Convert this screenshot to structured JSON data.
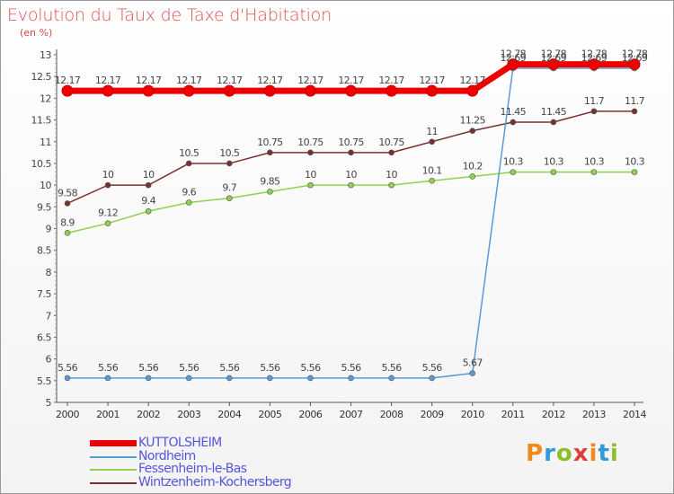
{
  "title": "Evolution du Taux de Taxe d'Habitation",
  "unit": "(en %)",
  "logo": {
    "text": "Proxiti",
    "colors": [
      "#f08a1c",
      "#2f9ad8",
      "#8cbf26",
      "#e23b3b",
      "#f08a1c",
      "#2f9ad8",
      "#8cbf26"
    ]
  },
  "chart_data": {
    "type": "line",
    "title": "Evolution du Taux de Taxe d'Habitation",
    "ylabel": "(en %)",
    "xlabel": "",
    "x": [
      "2000",
      "2001",
      "2002",
      "2003",
      "2004",
      "2005",
      "2006",
      "2007",
      "2008",
      "2009",
      "2010",
      "2011",
      "2012",
      "2013",
      "2014"
    ],
    "ylim": [
      5,
      13
    ],
    "yticks": [
      "5",
      "5.5",
      "6",
      "6.5",
      "7",
      "7.5",
      "8",
      "8.5",
      "9",
      "9.5",
      "10",
      "10.5",
      "11",
      "11.5",
      "12",
      "12.5",
      "13"
    ],
    "grid": false,
    "legend_position": "bottom-left",
    "series": [
      {
        "name": "KUTTOLSHEIM",
        "color": "#ee0000",
        "thick": true,
        "values": [
          12.17,
          12.17,
          12.17,
          12.17,
          12.17,
          12.17,
          12.17,
          12.17,
          12.17,
          12.17,
          12.17,
          12.78,
          12.78,
          12.78,
          12.78
        ],
        "labels": [
          "12.17",
          "12.17",
          "12.17",
          "12.17",
          "12.17",
          "12.17",
          "12.17",
          "12.17",
          "12.17",
          "12.17",
          "12.17",
          "12.78",
          "12.78",
          "12.78",
          "12.78"
        ]
      },
      {
        "name": "Nordheim",
        "color": "#5b9bd5",
        "thick": false,
        "values": [
          5.56,
          5.56,
          5.56,
          5.56,
          5.56,
          5.56,
          5.56,
          5.56,
          5.56,
          5.56,
          5.67,
          12.69,
          12.69,
          12.69,
          12.69
        ],
        "labels": [
          "5.56",
          "5.56",
          "5.56",
          "5.56",
          "5.56",
          "5.56",
          "5.56",
          "5.56",
          "5.56",
          "5.56",
          "5.67",
          "12.69",
          "12.69",
          "12.69",
          "12.69"
        ]
      },
      {
        "name": "Fessenheim-le-Bas",
        "color": "#8fd14f",
        "thick": false,
        "values": [
          8.9,
          9.12,
          9.4,
          9.6,
          9.7,
          9.85,
          10,
          10,
          10,
          10.1,
          10.2,
          10.3,
          10.3,
          10.3,
          10.3
        ],
        "labels": [
          "8.9",
          "9.12",
          "9.4",
          "9.6",
          "9.7",
          "9.85",
          "10",
          "10",
          "10",
          "10.1",
          "10.2",
          "10.3",
          "10.3",
          "10.3",
          "10.3"
        ]
      },
      {
        "name": "Wintzenheim-Kochersberg",
        "color": "#7b3030",
        "thick": false,
        "values": [
          9.58,
          10,
          10,
          10.5,
          10.5,
          10.75,
          10.75,
          10.75,
          10.75,
          11,
          11.25,
          11.45,
          11.45,
          11.7,
          11.7
        ],
        "labels": [
          "9.58",
          "10",
          "10",
          "10.5",
          "10.5",
          "10.75",
          "10.75",
          "10.75",
          "10.75",
          "11",
          "11.25",
          "11.45",
          "11.45",
          "11.7",
          "11.7"
        ]
      }
    ]
  }
}
